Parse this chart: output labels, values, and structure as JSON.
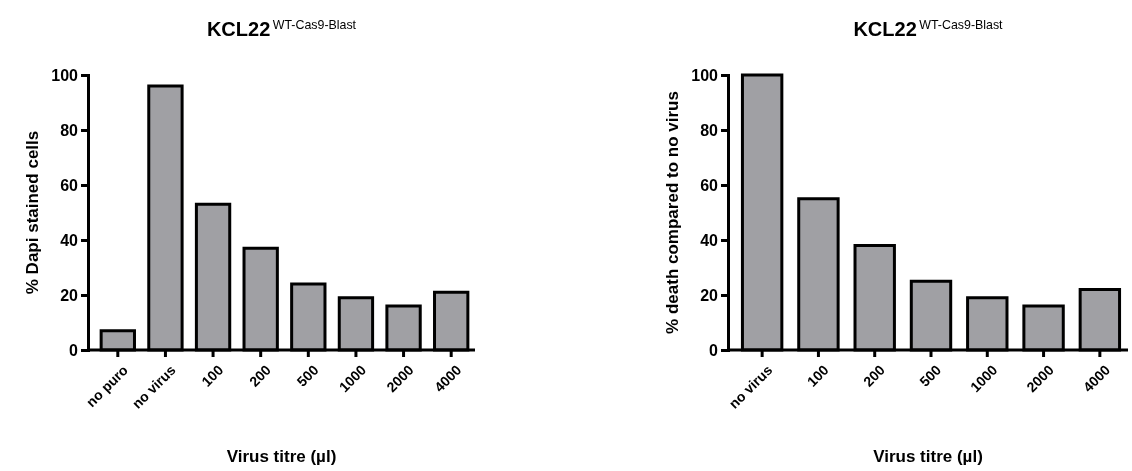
{
  "chart_data": [
    {
      "type": "bar",
      "title": "KCL22$^{WT-Cas9-Blast}$",
      "xlabel": "Virus titre (µl)",
      "ylabel": "% Dapi stained cells",
      "categories": [
        "no puro",
        "no virus",
        "100",
        "200",
        "500",
        "1000",
        "2000",
        "4000"
      ],
      "values": [
        7,
        96,
        53,
        37,
        24,
        19,
        16,
        21
      ],
      "color": "#a0a0a4",
      "ylim": [
        0,
        100
      ],
      "yticks": [
        0,
        20,
        40,
        60,
        80,
        100
      ]
    },
    {
      "type": "bar",
      "title": "KCL22$^{WT-Cas9-Blast}$",
      "xlabel": "Virus titre (µl)",
      "ylabel": "% death compared to no virus",
      "categories": [
        "no virus",
        "100",
        "200",
        "500",
        "1000",
        "2000",
        "4000"
      ],
      "values": [
        100,
        55,
        38,
        25,
        19,
        16,
        22
      ],
      "color": "#a0a0a4",
      "ylim": [
        0,
        100
      ],
      "yticks": [
        0,
        20,
        40,
        60,
        80,
        100
      ]
    }
  ]
}
